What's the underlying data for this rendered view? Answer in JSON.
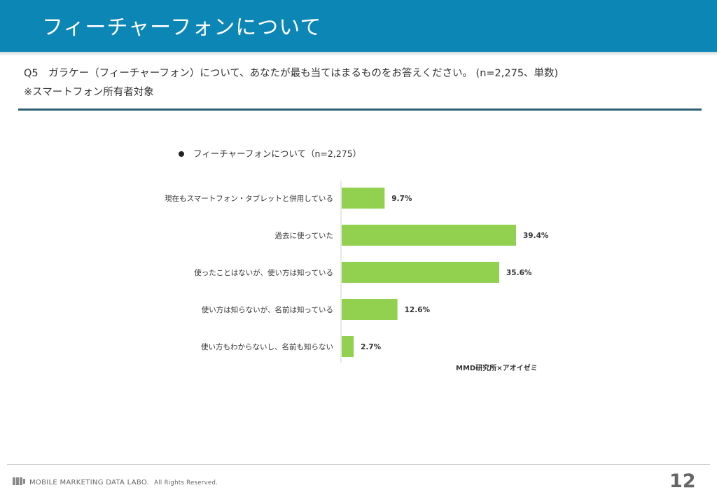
{
  "header": {
    "title": "フィーチャーフォンについて"
  },
  "question": {
    "text": "Q5　ガラケー（フィーチャーフォン）について、あなたが最も当てはまるものをお答えください。 (n=2,275、単数)",
    "target": "※スマートフォン所有者対象"
  },
  "chart_data": {
    "type": "bar",
    "orientation": "horizontal",
    "title": "フィーチャーフォンについて（n=2,275）",
    "categories": [
      "現在もスマートフォン・タブレットと併用している",
      "過去に使っていた",
      "使ったことはないが、使い方は知っている",
      "使い方は知らないが、名前は知っている",
      "使い方もわからないし、名前も知らない"
    ],
    "values": [
      9.7,
      39.4,
      35.6,
      12.6,
      2.7
    ],
    "data_labels": [
      "9.7%",
      "39.4%",
      "35.6%",
      "12.6%",
      "2.7%"
    ],
    "unit": "%",
    "bar_color": "#92d050",
    "xlim": [
      0,
      45
    ],
    "source": "MMD研究所×アオイゼミ"
  },
  "footer": {
    "org": "MOBILE MARKETING DATA LABO.",
    "rights": "All Rights Reserved.",
    "page_number": "12"
  }
}
